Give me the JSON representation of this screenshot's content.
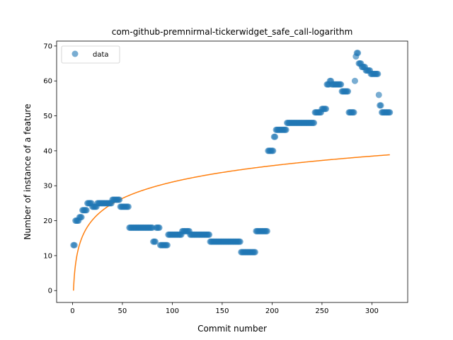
{
  "chart_data": {
    "type": "scatter",
    "title": "com-github-premnirmal-tickerwidget_safe_call-logarithm",
    "xlabel": "Commit number",
    "ylabel": "Number of instance of a feature",
    "xlim": [
      -15.9,
      335.9
    ],
    "ylim": [
      -3.4,
      71.4
    ],
    "xticks": [
      0,
      50,
      100,
      150,
      200,
      250,
      300
    ],
    "yticks": [
      0,
      10,
      20,
      30,
      40,
      50,
      60,
      70
    ],
    "grid": false,
    "legend": {
      "placement": "top-left",
      "entries": [
        "data"
      ]
    },
    "colors": {
      "data": "#1f77b4",
      "fit": "#ff7f0e"
    },
    "series": [
      {
        "name": "data",
        "style": "markers",
        "points": [
          [
            1,
            13
          ],
          [
            2,
            13
          ],
          [
            3,
            20
          ],
          [
            4,
            20
          ],
          [
            5,
            20
          ],
          [
            6,
            20
          ],
          [
            7,
            21
          ],
          [
            8,
            21
          ],
          [
            9,
            21
          ],
          [
            10,
            23
          ],
          [
            11,
            23
          ],
          [
            12,
            23
          ],
          [
            13,
            23
          ],
          [
            14,
            23
          ],
          [
            15,
            25
          ],
          [
            16,
            25
          ],
          [
            17,
            25
          ],
          [
            18,
            25
          ],
          [
            19,
            25
          ],
          [
            20,
            24
          ],
          [
            21,
            24
          ],
          [
            22,
            24
          ],
          [
            23,
            24
          ],
          [
            24,
            24
          ],
          [
            25,
            25
          ],
          [
            26,
            25
          ],
          [
            27,
            25
          ],
          [
            28,
            25
          ],
          [
            29,
            25
          ],
          [
            30,
            25
          ],
          [
            31,
            25
          ],
          [
            32,
            25
          ],
          [
            33,
            25
          ],
          [
            34,
            25
          ],
          [
            35,
            25
          ],
          [
            36,
            25
          ],
          [
            37,
            25
          ],
          [
            38,
            25
          ],
          [
            39,
            25
          ],
          [
            40,
            26
          ],
          [
            41,
            26
          ],
          [
            42,
            26
          ],
          [
            43,
            26
          ],
          [
            44,
            26
          ],
          [
            45,
            26
          ],
          [
            46,
            26
          ],
          [
            47,
            26
          ],
          [
            48,
            24
          ],
          [
            49,
            24
          ],
          [
            50,
            24
          ],
          [
            51,
            24
          ],
          [
            52,
            24
          ],
          [
            53,
            24
          ],
          [
            54,
            24
          ],
          [
            55,
            24
          ],
          [
            56,
            24
          ],
          [
            57,
            18
          ],
          [
            58,
            18
          ],
          [
            59,
            18
          ],
          [
            60,
            18
          ],
          [
            61,
            18
          ],
          [
            62,
            18
          ],
          [
            63,
            18
          ],
          [
            64,
            18
          ],
          [
            65,
            18
          ],
          [
            66,
            18
          ],
          [
            67,
            18
          ],
          [
            68,
            18
          ],
          [
            69,
            18
          ],
          [
            70,
            18
          ],
          [
            71,
            18
          ],
          [
            72,
            18
          ],
          [
            73,
            18
          ],
          [
            74,
            18
          ],
          [
            75,
            18
          ],
          [
            76,
            18
          ],
          [
            77,
            18
          ],
          [
            78,
            18
          ],
          [
            79,
            18
          ],
          [
            80,
            18
          ],
          [
            81,
            14
          ],
          [
            82,
            14
          ],
          [
            83,
            14
          ],
          [
            84,
            18
          ],
          [
            85,
            18
          ],
          [
            86,
            18
          ],
          [
            87,
            18
          ],
          [
            88,
            13
          ],
          [
            89,
            13
          ],
          [
            90,
            13
          ],
          [
            91,
            13
          ],
          [
            92,
            13
          ],
          [
            93,
            13
          ],
          [
            94,
            13
          ],
          [
            95,
            13
          ],
          [
            96,
            16
          ],
          [
            97,
            16
          ],
          [
            98,
            16
          ],
          [
            99,
            16
          ],
          [
            100,
            16
          ],
          [
            101,
            16
          ],
          [
            102,
            16
          ],
          [
            103,
            16
          ],
          [
            104,
            16
          ],
          [
            105,
            16
          ],
          [
            106,
            16
          ],
          [
            107,
            16
          ],
          [
            108,
            16
          ],
          [
            109,
            16
          ],
          [
            110,
            17
          ],
          [
            111,
            17
          ],
          [
            112,
            17
          ],
          [
            113,
            17
          ],
          [
            114,
            17
          ],
          [
            115,
            17
          ],
          [
            116,
            17
          ],
          [
            117,
            17
          ],
          [
            118,
            16
          ],
          [
            119,
            16
          ],
          [
            120,
            16
          ],
          [
            121,
            16
          ],
          [
            122,
            16
          ],
          [
            123,
            16
          ],
          [
            124,
            16
          ],
          [
            125,
            16
          ],
          [
            126,
            16
          ],
          [
            127,
            16
          ],
          [
            128,
            16
          ],
          [
            129,
            16
          ],
          [
            130,
            16
          ],
          [
            131,
            16
          ],
          [
            132,
            16
          ],
          [
            133,
            16
          ],
          [
            134,
            16
          ],
          [
            135,
            16
          ],
          [
            136,
            16
          ],
          [
            137,
            16
          ],
          [
            138,
            14
          ],
          [
            139,
            14
          ],
          [
            140,
            14
          ],
          [
            141,
            14
          ],
          [
            142,
            14
          ],
          [
            143,
            14
          ],
          [
            144,
            14
          ],
          [
            145,
            14
          ],
          [
            146,
            14
          ],
          [
            147,
            14
          ],
          [
            148,
            14
          ],
          [
            149,
            14
          ],
          [
            150,
            14
          ],
          [
            151,
            14
          ],
          [
            152,
            14
          ],
          [
            153,
            14
          ],
          [
            154,
            14
          ],
          [
            155,
            14
          ],
          [
            156,
            14
          ],
          [
            157,
            14
          ],
          [
            158,
            14
          ],
          [
            159,
            14
          ],
          [
            160,
            14
          ],
          [
            161,
            14
          ],
          [
            162,
            14
          ],
          [
            163,
            14
          ],
          [
            164,
            14
          ],
          [
            165,
            14
          ],
          [
            166,
            14
          ],
          [
            167,
            14
          ],
          [
            168,
            14
          ],
          [
            169,
            11
          ],
          [
            170,
            11
          ],
          [
            171,
            11
          ],
          [
            172,
            11
          ],
          [
            173,
            11
          ],
          [
            174,
            11
          ],
          [
            175,
            11
          ],
          [
            176,
            11
          ],
          [
            177,
            11
          ],
          [
            178,
            11
          ],
          [
            179,
            11
          ],
          [
            180,
            11
          ],
          [
            181,
            11
          ],
          [
            182,
            11
          ],
          [
            183,
            11
          ],
          [
            184,
            17
          ],
          [
            185,
            17
          ],
          [
            186,
            17
          ],
          [
            187,
            17
          ],
          [
            188,
            17
          ],
          [
            189,
            17
          ],
          [
            190,
            17
          ],
          [
            191,
            17
          ],
          [
            192,
            17
          ],
          [
            193,
            17
          ],
          [
            194,
            17
          ],
          [
            195,
            17
          ],
          [
            196,
            40
          ],
          [
            197,
            40
          ],
          [
            198,
            40
          ],
          [
            199,
            40
          ],
          [
            200,
            40
          ],
          [
            201,
            40
          ],
          [
            202,
            44
          ],
          [
            203,
            44
          ],
          [
            204,
            46
          ],
          [
            205,
            46
          ],
          [
            206,
            46
          ],
          [
            207,
            46
          ],
          [
            208,
            46
          ],
          [
            209,
            46
          ],
          [
            210,
            46
          ],
          [
            211,
            46
          ],
          [
            212,
            46
          ],
          [
            213,
            46
          ],
          [
            214,
            46
          ],
          [
            215,
            48
          ],
          [
            216,
            48
          ],
          [
            217,
            48
          ],
          [
            218,
            48
          ],
          [
            219,
            48
          ],
          [
            220,
            48
          ],
          [
            221,
            48
          ],
          [
            222,
            48
          ],
          [
            223,
            48
          ],
          [
            224,
            48
          ],
          [
            225,
            48
          ],
          [
            226,
            48
          ],
          [
            227,
            48
          ],
          [
            228,
            48
          ],
          [
            229,
            48
          ],
          [
            230,
            48
          ],
          [
            231,
            48
          ],
          [
            232,
            48
          ],
          [
            233,
            48
          ],
          [
            234,
            48
          ],
          [
            235,
            48
          ],
          [
            236,
            48
          ],
          [
            237,
            48
          ],
          [
            238,
            48
          ],
          [
            239,
            48
          ],
          [
            240,
            48
          ],
          [
            241,
            48
          ],
          [
            242,
            48
          ],
          [
            243,
            51
          ],
          [
            244,
            51
          ],
          [
            245,
            51
          ],
          [
            246,
            51
          ],
          [
            247,
            51
          ],
          [
            248,
            51
          ],
          [
            249,
            51
          ],
          [
            250,
            52
          ],
          [
            251,
            52
          ],
          [
            252,
            52
          ],
          [
            253,
            52
          ],
          [
            254,
            52
          ],
          [
            255,
            59
          ],
          [
            256,
            59
          ],
          [
            257,
            59
          ],
          [
            258,
            60
          ],
          [
            259,
            60
          ],
          [
            260,
            59
          ],
          [
            261,
            59
          ],
          [
            262,
            59
          ],
          [
            263,
            59
          ],
          [
            264,
            59
          ],
          [
            265,
            59
          ],
          [
            266,
            59
          ],
          [
            267,
            59
          ],
          [
            268,
            59
          ],
          [
            269,
            59
          ],
          [
            270,
            57
          ],
          [
            271,
            57
          ],
          [
            272,
            57
          ],
          [
            273,
            57
          ],
          [
            274,
            57
          ],
          [
            275,
            57
          ],
          [
            276,
            57
          ],
          [
            277,
            51
          ],
          [
            278,
            51
          ],
          [
            279,
            51
          ],
          [
            280,
            51
          ],
          [
            281,
            51
          ],
          [
            282,
            51
          ],
          [
            283,
            60
          ],
          [
            284,
            67
          ],
          [
            285,
            68
          ],
          [
            286,
            68
          ],
          [
            287,
            65
          ],
          [
            288,
            65
          ],
          [
            289,
            65
          ],
          [
            290,
            64
          ],
          [
            291,
            64
          ],
          [
            292,
            64
          ],
          [
            293,
            64
          ],
          [
            294,
            63
          ],
          [
            295,
            63
          ],
          [
            296,
            63
          ],
          [
            297,
            63
          ],
          [
            298,
            63
          ],
          [
            299,
            62
          ],
          [
            300,
            62
          ],
          [
            301,
            62
          ],
          [
            302,
            62
          ],
          [
            303,
            62
          ],
          [
            304,
            62
          ],
          [
            305,
            62
          ],
          [
            306,
            62
          ],
          [
            307,
            56
          ],
          [
            308,
            53
          ],
          [
            309,
            53
          ],
          [
            310,
            51
          ],
          [
            311,
            51
          ],
          [
            312,
            51
          ],
          [
            313,
            51
          ],
          [
            314,
            51
          ],
          [
            315,
            51
          ],
          [
            316,
            51
          ],
          [
            317,
            51
          ],
          [
            318,
            51
          ]
        ]
      },
      {
        "style": "line",
        "function": "logarithmic",
        "x_range": [
          1,
          318
        ],
        "coefficients": {
          "a": 6.745,
          "b": 0
        }
      }
    ]
  }
}
